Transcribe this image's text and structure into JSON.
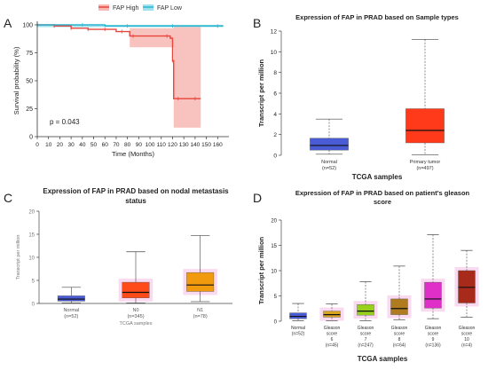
{
  "panels": {
    "A": {
      "label": "A",
      "chart_data": {
        "type": "line",
        "title": "",
        "xlabel": "Time (Months)",
        "ylabel": "Survival probability (%)",
        "xlim": [
          0,
          170
        ],
        "ylim": [
          0,
          100
        ],
        "xticks": [
          0,
          10,
          20,
          30,
          40,
          50,
          60,
          70,
          80,
          90,
          100,
          110,
          120,
          130,
          140,
          150,
          160
        ],
        "yticks": [
          0,
          25,
          50,
          75,
          100
        ],
        "legend": [
          "FAP High",
          "FAP Low"
        ],
        "legend_placement": "top-center",
        "annotation": "p = 0.043",
        "colors": {
          "high": "#e8453c",
          "high_ci": "#f7b8b3",
          "low": "#2bb6cf",
          "low_ci": "#9fe1ec"
        },
        "series": [
          {
            "name": "FAP High",
            "x": [
              0,
              10,
              15,
              20,
              30,
              40,
              45,
              50,
              60,
              70,
              75,
              82,
              85,
              100,
              115,
              118,
              120,
              121,
              125,
              130,
              140,
              145
            ],
            "y": [
              100,
              100,
              99,
              99,
              97,
              97,
              96,
              96,
              96,
              94,
              94,
              90,
              90,
              90,
              90,
              88,
              68,
              34,
              34,
              34,
              34,
              34
            ]
          },
          {
            "name": "FAP Low",
            "x": [
              0,
              20,
              40,
              60,
              80,
              100,
              120,
              140,
              160,
              165
            ],
            "y": [
              100,
              100,
              100,
              99,
              99,
              99,
              99,
              99,
              99,
              99
            ]
          }
        ],
        "ci_high": {
          "x": [
            82,
            120,
            121,
            145
          ],
          "lower": [
            80,
            80,
            8,
            8
          ],
          "upper": [
            97,
            97,
            100,
            100
          ]
        }
      }
    },
    "B": {
      "label": "B",
      "chart_data": {
        "type": "box",
        "title": "Expression of FAP in PRAD based on Sample types",
        "xlabel": "TCGA samples",
        "ylabel": "Transcript per million",
        "ylim": [
          0,
          12
        ],
        "yticks": [
          0,
          2,
          4,
          6,
          8,
          10,
          12
        ],
        "categories": [
          {
            "name": "Normal",
            "n": "(n=52)",
            "min": 0.1,
            "q1": 0.5,
            "median": 0.95,
            "q3": 1.65,
            "max": 3.5,
            "color": "#4a5bd6"
          },
          {
            "name": "Primary tumor",
            "n": "(n=497)",
            "min": 0.05,
            "q1": 1.2,
            "median": 2.4,
            "q3": 4.5,
            "max": 11.2,
            "color": "#ff3a1a"
          }
        ]
      }
    },
    "C": {
      "label": "C",
      "chart_data": {
        "type": "box",
        "title": "Expression of FAP in PRAD based on nodal metastasis status",
        "xlabel": "TCGA samples",
        "ylabel": "Transcript per million",
        "ylim": [
          0,
          20
        ],
        "yticks": [
          0,
          5,
          10,
          15,
          20
        ],
        "categories": [
          {
            "name": "Normal",
            "n": "(n=52)",
            "min": 0.1,
            "q1": 0.5,
            "median": 0.95,
            "q3": 1.65,
            "max": 3.5,
            "color": "#4a5bd6"
          },
          {
            "name": "N0",
            "n": "(n=345)",
            "min": 0.1,
            "q1": 1.2,
            "median": 2.4,
            "q3": 4.6,
            "max": 11.2,
            "color": "#ff4a1a"
          },
          {
            "name": "N1",
            "n": "(n=78)",
            "min": 0.4,
            "q1": 2.6,
            "median": 4.0,
            "q3": 6.7,
            "max": 14.7,
            "color": "#f29a0e"
          }
        ]
      }
    },
    "D": {
      "label": "D",
      "chart_data": {
        "type": "box",
        "title": "Expression of FAP in PRAD based on patient's gleason score",
        "xlabel": "TCGA samples",
        "ylabel": "Transcript per million",
        "ylim": [
          0,
          20
        ],
        "yticks": [
          0,
          5,
          10,
          15,
          20
        ],
        "categories": [
          {
            "name": "Normal",
            "n": "(n=52)",
            "min": 0.1,
            "q1": 0.5,
            "median": 0.95,
            "q3": 1.65,
            "max": 3.5,
            "color": "#4a5bd6"
          },
          {
            "name": "Gleason score 6",
            "n": "(n=45)",
            "min": 0.1,
            "q1": 0.8,
            "median": 1.3,
            "q3": 2.0,
            "max": 3.4,
            "color": "#d9a41e"
          },
          {
            "name": "Gleason score 7",
            "n": "(n=247)",
            "min": 0.1,
            "q1": 1.2,
            "median": 2.0,
            "q3": 3.3,
            "max": 7.8,
            "color": "#97d11e"
          },
          {
            "name": "Gleason score 8",
            "n": "(n=64)",
            "min": 0.3,
            "q1": 1.3,
            "median": 2.5,
            "q3": 4.4,
            "max": 10.9,
            "color": "#b07a1e"
          },
          {
            "name": "Gleason score 9",
            "n": "(n=136)",
            "min": 0.5,
            "q1": 2.6,
            "median": 4.4,
            "q3": 7.7,
            "max": 17.1,
            "color": "#e02ec8"
          },
          {
            "name": "Gleason score 10",
            "n": "(n=4)",
            "min": 0.8,
            "q1": 3.6,
            "median": 6.7,
            "q3": 10.0,
            "max": 14.0,
            "color": "#a82a1a"
          }
        ]
      }
    }
  }
}
